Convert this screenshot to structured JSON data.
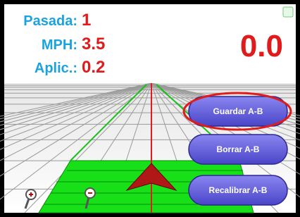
{
  "status": {
    "pass_label": "Pasada:",
    "pass_value": "1",
    "speed_label": "MPH:",
    "speed_value": "3.5",
    "rate_label": "Aplic.:",
    "rate_value": "0.2",
    "main_value": "0.0"
  },
  "buttons": [
    "Guardar A-B",
    "Borrar A-B",
    "Recalibrar A-B"
  ]
}
